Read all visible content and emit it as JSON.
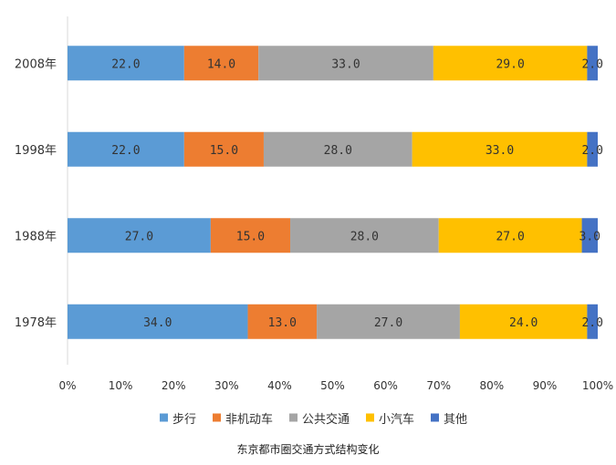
{
  "chart_data": {
    "type": "bar",
    "orientation": "horizontal",
    "stacked": "percent",
    "categories": [
      "2008年",
      "1998年",
      "1988年",
      "1978年"
    ],
    "series": [
      {
        "name": "步行",
        "color": "#5b9bd5",
        "values": [
          22.0,
          22.0,
          27.0,
          34.0
        ]
      },
      {
        "name": "非机动车",
        "color": "#ed7d31",
        "values": [
          14.0,
          15.0,
          15.0,
          13.0
        ]
      },
      {
        "name": "公共交通",
        "color": "#a5a5a5",
        "values": [
          33.0,
          28.0,
          28.0,
          27.0
        ]
      },
      {
        "name": "小汽车",
        "color": "#ffc000",
        "values": [
          29.0,
          33.0,
          27.0,
          24.0
        ]
      },
      {
        "name": "其他",
        "color": "#4472c4",
        "values": [
          2.0,
          2.0,
          3.0,
          2.0
        ]
      }
    ],
    "xlim": [
      0,
      100
    ],
    "xticks": [
      "0%",
      "10%",
      "20%",
      "30%",
      "40%",
      "50%",
      "60%",
      "70%",
      "80%",
      "90%",
      "100%"
    ],
    "legend": "bottom",
    "grid": false
  },
  "caption": "东京都市圈交通方式结构变化"
}
